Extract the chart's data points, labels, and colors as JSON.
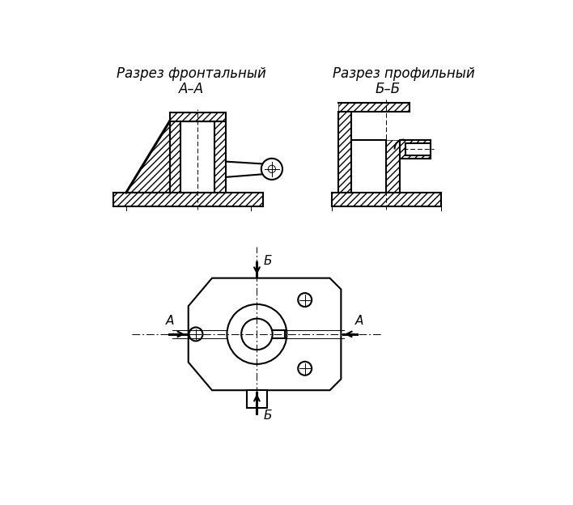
{
  "bg_color": "#ffffff",
  "title1": "Разрез фронтальный",
  "title2": "Разрез профильный",
  "label_aa": "А–А",
  "label_bb": "Б–Б",
  "label_a": "А",
  "label_b": "Б",
  "font_size_title": 12,
  "font_size_label": 11
}
